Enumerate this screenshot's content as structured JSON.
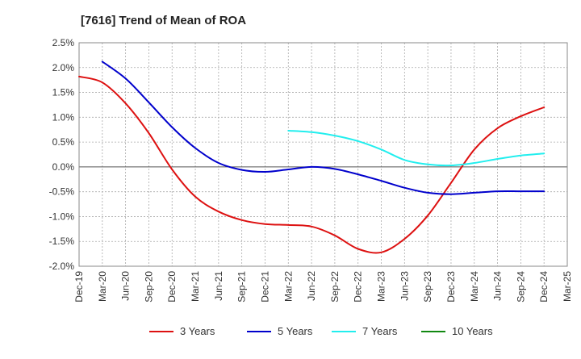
{
  "chart_data": {
    "type": "line",
    "title": "[7616]  Trend of Mean of ROA",
    "xlabel": "",
    "ylabel": "",
    "ylim": [
      -2.0,
      2.5
    ],
    "yticks": [
      2.5,
      2.0,
      1.5,
      1.0,
      0.5,
      0.0,
      -0.5,
      -1.0,
      -1.5,
      -2.0
    ],
    "ytick_labels": [
      "2.5%",
      "2.0%",
      "1.5%",
      "1.0%",
      "0.5%",
      "0.0%",
      "-0.5%",
      "-1.0%",
      "-1.5%",
      "-2.0%"
    ],
    "categories": [
      "Dec-19",
      "Mar-20",
      "Jun-20",
      "Sep-20",
      "Dec-20",
      "Mar-21",
      "Jun-21",
      "Sep-21",
      "Dec-21",
      "Mar-22",
      "Jun-22",
      "Sep-22",
      "Dec-22",
      "Mar-23",
      "Jun-23",
      "Sep-23",
      "Dec-23",
      "Mar-24",
      "Jun-24",
      "Sep-24",
      "Dec-24",
      "Mar-25"
    ],
    "grid": true,
    "legend_position": "bottom",
    "series": [
      {
        "name": "3 Years",
        "color": "#dd1111",
        "values": [
          1.82,
          1.7,
          1.28,
          0.68,
          -0.05,
          -0.6,
          -0.9,
          -1.07,
          -1.15,
          -1.17,
          -1.2,
          -1.38,
          -1.65,
          -1.72,
          -1.45,
          -0.98,
          -0.32,
          0.35,
          0.78,
          1.02,
          1.2,
          null
        ]
      },
      {
        "name": "5 Years",
        "color": "#0000cc",
        "values": [
          null,
          2.12,
          1.78,
          1.3,
          0.8,
          0.38,
          0.08,
          -0.06,
          -0.1,
          -0.05,
          0.0,
          -0.04,
          -0.15,
          -0.28,
          -0.42,
          -0.52,
          -0.55,
          -0.52,
          -0.49,
          -0.49,
          -0.49,
          null
        ]
      },
      {
        "name": "7 Years",
        "color": "#22eeee",
        "values": [
          null,
          null,
          null,
          null,
          null,
          null,
          null,
          null,
          null,
          0.73,
          0.7,
          0.63,
          0.52,
          0.35,
          0.14,
          0.05,
          0.03,
          0.08,
          0.16,
          0.23,
          0.27,
          null
        ]
      },
      {
        "name": "10 Years",
        "color": "#118811",
        "values": [
          null,
          null,
          null,
          null,
          null,
          null,
          null,
          null,
          null,
          null,
          null,
          null,
          null,
          null,
          null,
          null,
          null,
          null,
          null,
          null,
          null,
          null
        ]
      }
    ]
  }
}
